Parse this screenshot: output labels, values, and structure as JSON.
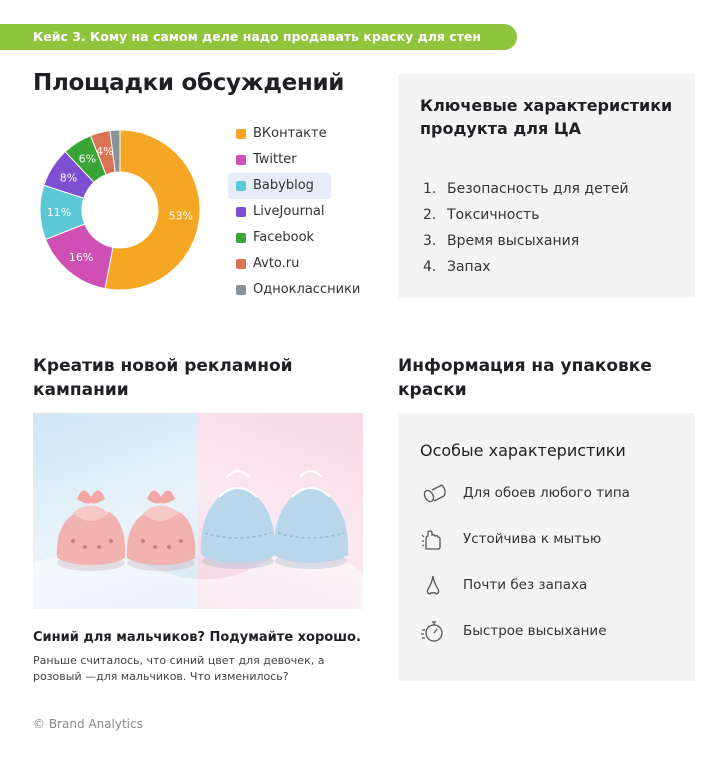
{
  "banner": {
    "text": "Кейс 3.  Кому на самом деле надо продавать краску для стен"
  },
  "donut_section": {
    "title": "Площадки обсуждений"
  },
  "chart_data": {
    "type": "pie",
    "title": "Площадки обсуждений",
    "slices": [
      {
        "label": "ВКонтакте",
        "value": 53,
        "color": "#f5a623",
        "value_label": "53%"
      },
      {
        "label": "Twitter",
        "value": 16,
        "color": "#cf4fb5",
        "value_label": "16%"
      },
      {
        "label": "Babyblog",
        "value": 11,
        "color": "#5cc8d6",
        "value_label": "11%"
      },
      {
        "label": "LiveJournal",
        "value": 8,
        "color": "#7e4fd3",
        "value_label": "8%"
      },
      {
        "label": "Facebook",
        "value": 6,
        "color": "#3aa537",
        "value_label": "6%"
      },
      {
        "label": "Avto.ru",
        "value": 4,
        "color": "#d97354",
        "value_label": "4%"
      },
      {
        "label": "Одноклассники",
        "value": 2,
        "color": "#8a9299",
        "value_label": ""
      }
    ],
    "legend": [
      "ВКонтакте",
      "Twitter",
      "Babyblog",
      "LiveJournal",
      "Facebook",
      "Avto.ru",
      "Одноклассники"
    ],
    "legend_position": "right",
    "highlighted": "Babyblog"
  },
  "characteristics": {
    "title": "Ключевые характеристики продукта для ЦА",
    "items": [
      {
        "num": "1.",
        "text": "Безопасность для детей"
      },
      {
        "num": "2.",
        "text": "Токсичность"
      },
      {
        "num": "3.",
        "text": "Время высыхания"
      },
      {
        "num": "4.",
        "text": "Запах"
      }
    ]
  },
  "creative": {
    "title": "Креатив новой рекламной кампании",
    "caption_title": "Синий для мальчиков? Подумайте хорошо.",
    "caption_text": "Раньше считалось, что синий цвет для девочек, а розовый —для мальчиков. Что изменилось?"
  },
  "packaging": {
    "title": "Информация на упаковке краски",
    "subtitle": "Особые характеристики",
    "features": [
      {
        "icon": "wallpaper-roll-icon",
        "text": "Для обоев любого типа"
      },
      {
        "icon": "washing-hand-icon",
        "text": "Устойчива к мытью"
      },
      {
        "icon": "nose-icon",
        "text": "Почти без запаха"
      },
      {
        "icon": "stopwatch-icon",
        "text": "Быстрое высыхание"
      }
    ]
  },
  "footer": {
    "text": "© Brand Analytics"
  }
}
